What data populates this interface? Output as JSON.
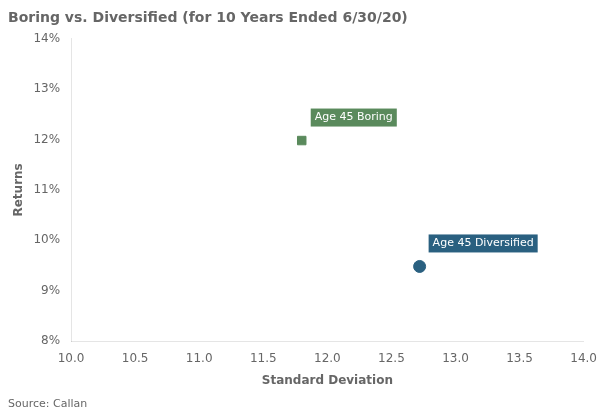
{
  "chart_data": {
    "type": "scatter",
    "title": "Boring vs. Diversified (for 10 Years Ended 6/30/20)",
    "xlabel": "Standard Deviation",
    "ylabel": "Returns",
    "source": "Source: Callan",
    "series": [
      {
        "name": "Age 45 Boring",
        "color": "#5a8a5c",
        "marker": "square",
        "x": [
          11.8
        ],
        "values": [
          0.1198
        ]
      },
      {
        "name": "Age 45 Diversified",
        "color": "#2a6080",
        "marker": "circle",
        "x": [
          12.72
        ],
        "values": [
          0.0948
        ]
      }
    ],
    "xlim": [
      10.0,
      14.0
    ],
    "ylim": [
      0.08,
      0.14
    ],
    "xticks": [
      {
        "value": 10.0,
        "label": "10.0"
      },
      10.5,
      {
        "value": 11.0,
        "label": "11.0"
      },
      11.5,
      {
        "value": 12.0,
        "label": "12.0"
      },
      12.5,
      {
        "value": 13.0,
        "label": "13.0"
      },
      13.5,
      {
        "value": 14.0,
        "label": "14.0"
      }
    ],
    "yticks": [
      {
        "value": 0.08,
        "label": "8%"
      },
      {
        "value": 0.09,
        "label": "9%"
      },
      {
        "value": 0.1,
        "label": "10%"
      },
      {
        "value": 0.11,
        "label": "11%"
      },
      {
        "value": 0.12,
        "label": "12%"
      },
      {
        "value": 0.13,
        "label": "13%"
      },
      {
        "value": 0.14,
        "label": "14%"
      }
    ],
    "grid": false
  }
}
